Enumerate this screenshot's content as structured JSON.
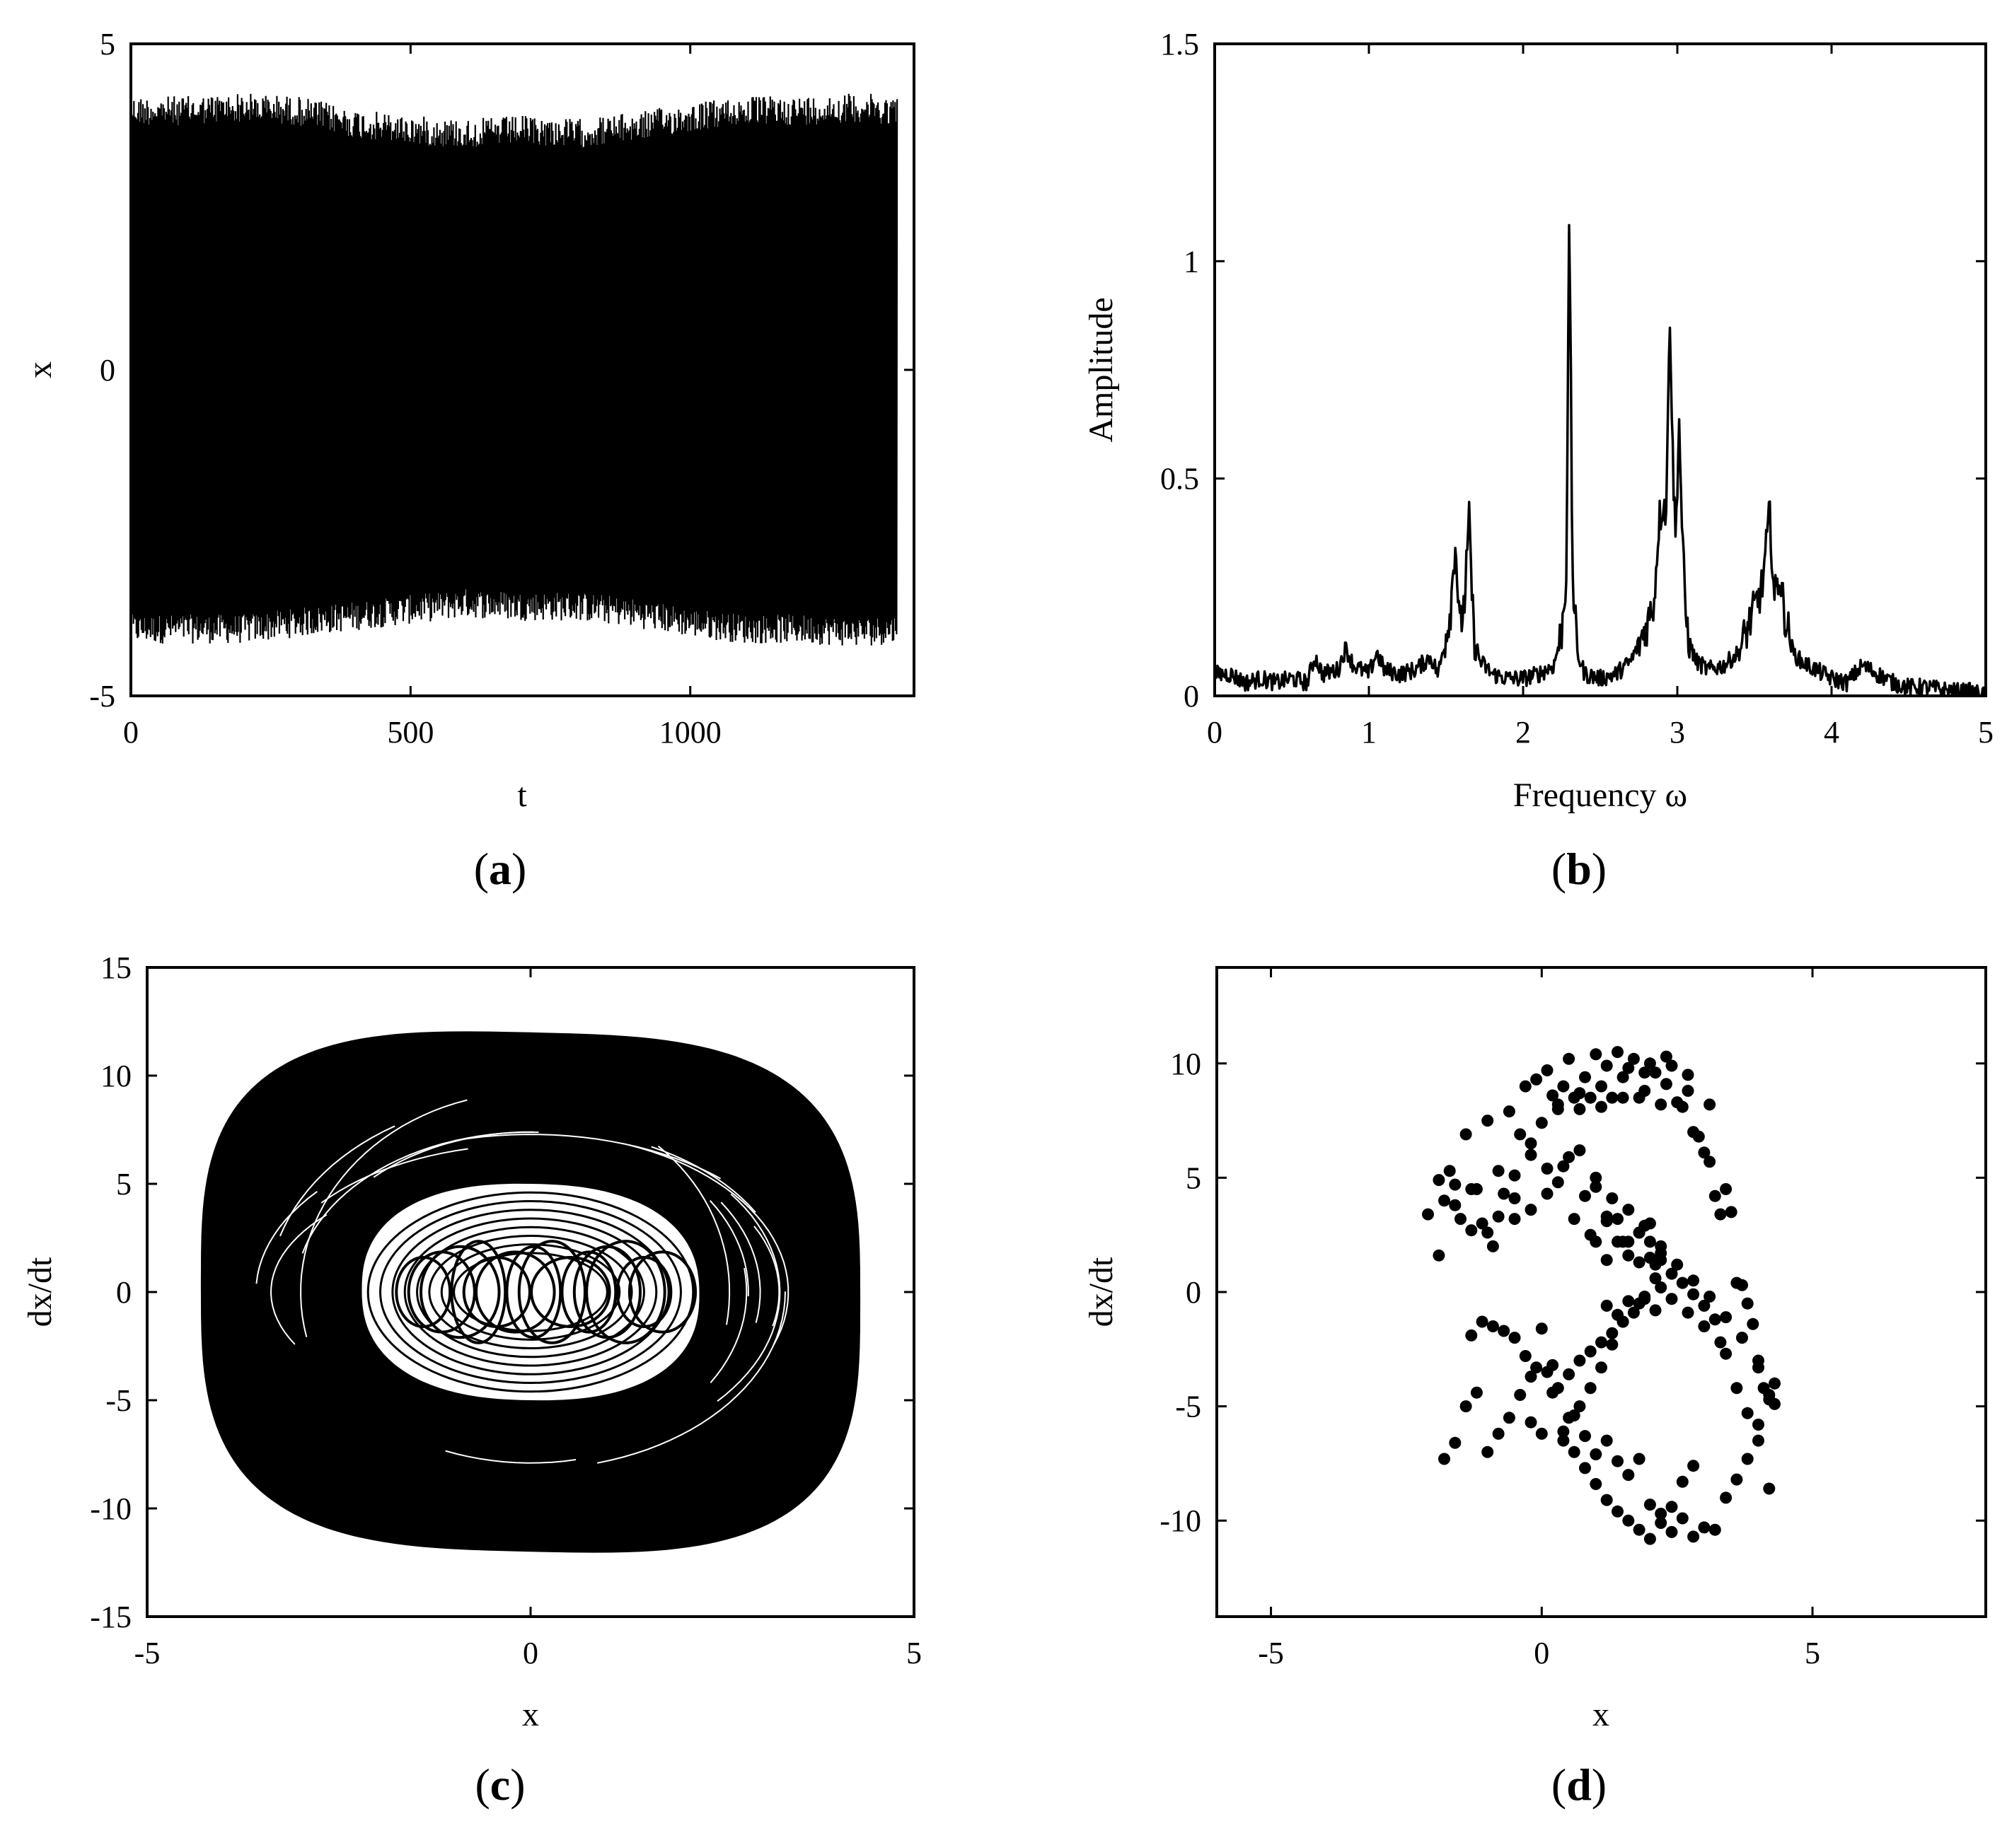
{
  "figure": {
    "panel_labels": [
      {
        "open": "(",
        "letter": "a",
        "close": ")"
      },
      {
        "open": "(",
        "letter": "b",
        "close": ")"
      },
      {
        "open": "(",
        "letter": "c",
        "close": ")"
      },
      {
        "open": "(",
        "letter": "d",
        "close": ")"
      }
    ]
  },
  "chart_data": [
    {
      "id": "a",
      "type": "line",
      "title": "",
      "xlabel": "t",
      "ylabel": "x",
      "xlim": [
        0,
        1400
      ],
      "ylim": [
        -5,
        5
      ],
      "xticks": [
        0,
        500,
        1000
      ],
      "xtick_labels": [
        "0",
        "500",
        "1000"
      ],
      "yticks": [
        -5,
        0,
        5
      ],
      "ytick_labels": [
        "-5",
        "0",
        "5"
      ],
      "grid": false,
      "series": [
        {
          "description_values": "dense chaotic time series x(t)",
          "envelope": {
            "t": [
              0,
              100,
              200,
              300,
              400,
              500,
              600,
              700,
              800,
              900,
              1000,
              1100,
              1200,
              1300,
              1370
            ],
            "max": [
              4.2,
              4.2,
              4.25,
              4.2,
              4.0,
              3.9,
              3.85,
              3.9,
              3.85,
              3.95,
              4.1,
              4.2,
              4.2,
              4.25,
              4.2
            ],
            "min": [
              -4.2,
              -4.2,
              -4.2,
              -4.1,
              -4.0,
              -3.9,
              -3.8,
              -3.85,
              -3.85,
              -3.95,
              -4.1,
              -4.2,
              -4.2,
              -4.25,
              -4.2
            ]
          },
          "t_end": 1370
        }
      ]
    },
    {
      "id": "b",
      "type": "line",
      "title": "",
      "xlabel": "Frequency ω",
      "ylabel": "Amplitude",
      "xlim": [
        0,
        5
      ],
      "ylim": [
        0,
        1.5
      ],
      "xticks": [
        0,
        1,
        2,
        3,
        4,
        5
      ],
      "xtick_labels": [
        "0",
        "1",
        "2",
        "3",
        "4",
        "5"
      ],
      "yticks": [
        0,
        0.5,
        1,
        1.5
      ],
      "ytick_labels": [
        "0",
        "0.5",
        "1",
        "1.5"
      ],
      "grid": false,
      "series": [
        {
          "x": [
            0,
            0.1,
            0.2,
            0.3,
            0.4,
            0.5,
            0.6,
            0.65,
            0.7,
            0.8,
            0.85,
            0.9,
            1.0,
            1.05,
            1.1,
            1.2,
            1.3,
            1.4,
            1.45,
            1.5,
            1.53,
            1.56,
            1.59,
            1.62,
            1.65,
            1.68,
            1.72,
            1.8,
            1.9,
            2.0,
            2.1,
            2.2,
            2.25,
            2.28,
            2.3,
            2.32,
            2.35,
            2.4,
            2.5,
            2.6,
            2.7,
            2.8,
            2.85,
            2.88,
            2.91,
            2.93,
            2.95,
            2.97,
            2.99,
            3.01,
            3.03,
            3.05,
            3.08,
            3.12,
            3.2,
            3.3,
            3.4,
            3.5,
            3.55,
            3.6,
            3.63,
            3.66,
            3.7,
            3.75,
            3.8,
            3.9,
            4.0,
            4.1,
            4.2,
            4.3,
            4.4,
            4.5,
            4.6,
            4.7,
            4.8,
            4.9,
            5.0
          ],
          "y": [
            0.05,
            0.05,
            0.03,
            0.04,
            0.03,
            0.04,
            0.03,
            0.09,
            0.05,
            0.06,
            0.11,
            0.07,
            0.05,
            0.1,
            0.06,
            0.05,
            0.06,
            0.09,
            0.05,
            0.14,
            0.2,
            0.36,
            0.15,
            0.22,
            0.4,
            0.14,
            0.08,
            0.05,
            0.04,
            0.04,
            0.05,
            0.07,
            0.15,
            0.28,
            1.12,
            0.28,
            0.1,
            0.05,
            0.04,
            0.05,
            0.08,
            0.16,
            0.22,
            0.4,
            0.45,
            0.42,
            0.92,
            0.55,
            0.35,
            0.65,
            0.4,
            0.2,
            0.12,
            0.08,
            0.06,
            0.07,
            0.1,
            0.2,
            0.25,
            0.42,
            0.22,
            0.28,
            0.18,
            0.1,
            0.08,
            0.06,
            0.04,
            0.03,
            0.07,
            0.05,
            0.03,
            0.02,
            0.02,
            0.015,
            0.01,
            0.01,
            0.0
          ]
        }
      ]
    },
    {
      "id": "c",
      "type": "line",
      "title": "",
      "xlabel": "x",
      "ylabel": "dx/dt",
      "xlim": [
        -5,
        5
      ],
      "ylim": [
        -15,
        15
      ],
      "xticks": [
        -5,
        0,
        5
      ],
      "xtick_labels": [
        "-5",
        "0",
        "5"
      ],
      "yticks": [
        -15,
        -10,
        -5,
        0,
        5,
        10,
        15
      ],
      "ytick_labels": [
        "-15",
        "-10",
        "-5",
        "0",
        "5",
        "10",
        "15"
      ],
      "grid": false,
      "series": [
        {
          "description_values": "phase portrait trajectory",
          "outer_extent": {
            "x": [
              -4.3,
              4.3
            ],
            "y": [
              -12.0,
              12.0
            ]
          },
          "inner_hole_extent": {
            "x": [
              -2.2,
              2.2
            ],
            "y": [
              -5.0,
              5.0
            ]
          }
        }
      ]
    },
    {
      "id": "d",
      "type": "scatter",
      "title": "",
      "xlabel": "x",
      "ylabel": "dx/dt",
      "xlim": [
        -6,
        8.2
      ],
      "ylim": [
        -14.2,
        14.2
      ],
      "xticks": [
        -5,
        0,
        5
      ],
      "xtick_labels": [
        "-5",
        "0",
        "5"
      ],
      "yticks": [
        -10,
        -5,
        0,
        5,
        10
      ],
      "ytick_labels": [
        "-10",
        "-5",
        "0",
        "5",
        "10"
      ],
      "grid": false,
      "series": [
        {
          "x": [
            -2.1,
            -1.9,
            -1.8,
            -1.7,
            -1.6,
            -1.5,
            -1.4,
            -1.3,
            -1.2,
            -1.1,
            -1.0,
            -0.9,
            -0.8,
            -0.7,
            -0.6,
            -0.5,
            -0.4,
            -0.3,
            -0.2,
            -0.1,
            0.0,
            0.1,
            0.2,
            0.3,
            0.4,
            0.5,
            0.6,
            0.7,
            0.8,
            0.9,
            1.0,
            1.1,
            1.2,
            1.3,
            1.4,
            1.5,
            1.6,
            1.7,
            1.8,
            1.9,
            2.0,
            2.1,
            2.2,
            2.3,
            2.4,
            2.5,
            2.6,
            2.7,
            2.8,
            2.9,
            3.0,
            3.1,
            3.2,
            3.3,
            3.4,
            3.5,
            3.6,
            3.7,
            3.8,
            3.9,
            4.0,
            4.1,
            4.2,
            4.3,
            -1.9,
            -1.6,
            -1.3,
            -1.0,
            -0.8,
            -0.5,
            -0.2,
            0.1,
            0.3,
            0.5,
            0.8,
            1.0,
            1.2,
            1.4,
            1.6,
            1.8,
            2.0,
            2.2,
            2.4,
            2.6,
            2.8,
            3.0,
            3.2,
            3.4,
            3.6,
            3.8,
            4.0,
            4.2,
            1.0,
            1.2,
            1.4,
            1.6,
            1.8,
            2.0,
            2.1,
            2.2,
            1.9,
            1.7,
            1.5,
            1.3,
            1.1,
            0.9,
            0.7,
            0.5,
            0.3,
            0.1,
            -0.1,
            -0.3,
            -0.5,
            -0.7,
            -0.9,
            -1.1,
            -1.3,
            -0.2,
            0.0,
            0.2,
            0.4,
            0.6,
            0.8,
            1.0,
            1.2,
            1.4,
            1.6,
            1.8,
            2.0,
            2.2,
            2.4,
            2.6,
            2.8,
            3.0,
            3.2,
            3.4,
            3.6,
            3.8,
            4.0,
            4.2,
            4.3,
            2.0,
            2.2,
            1.6,
            1.4,
            1.2,
            1.9,
            2.1,
            1.8,
            1.5,
            1.3,
            1.1,
            0.9,
            0.7,
            0.5,
            0.4,
            0.6,
            0.8,
            1.0,
            1.2,
            1.4,
            1.6,
            1.8,
            2.0,
            2.2,
            2.4,
            2.6,
            2.8,
            0.2,
            0.0,
            -0.2,
            -0.4,
            -0.6,
            -0.8,
            -1.0,
            -1.2,
            -1.4,
            -1.6,
            -1.8,
            0.6,
            0.9,
            1.2,
            1.5,
            1.8,
            2.1,
            2.4,
            2.7,
            3.0,
            3.3,
            0.3,
            0.7,
            1.1,
            1.5,
            1.9,
            2.3,
            2.7,
            3.1,
            -0.5,
            -0.2,
            0.1,
            0.4,
            0.7,
            1.0,
            1.3,
            1.6,
            1.9,
            2.2,
            2.5,
            2.8,
            3.1,
            3.4,
            3.7,
            4.0
          ],
          "y": [
            3.4,
            1.6,
            4.0,
            5.3,
            4.7,
            3.2,
            6.9,
            2.7,
            4.5,
            3.0,
            7.5,
            2.0,
            5.3,
            4.3,
            7.9,
            3.2,
            6.9,
            9.0,
            6.5,
            9.3,
            7.4,
            9.7,
            8.6,
            8.2,
            9.0,
            10.2,
            8.5,
            8.0,
            9.4,
            8.5,
            10.4,
            8.1,
            9.9,
            8.5,
            10.5,
            8.5,
            9.8,
            10.2,
            8.5,
            8.8,
            10.0,
            9.6,
            8.2,
            10.3,
            9.9,
            8.3,
            8.1,
            9.5,
            7.0,
            6.8,
            6.1,
            5.7,
            4.2,
            3.4,
            4.5,
            3.5,
            0.4,
            0.3,
            -0.5,
            -1.4,
            -3.3,
            -4.2,
            -4.5,
            -4.9,
            4.9,
            3.8,
            4.5,
            2.6,
            3.3,
            4.1,
            3.6,
            5.4,
            4.8,
            5.9,
            4.2,
            4.6,
            3.3,
            3.2,
            2.2,
            2.6,
            1.5,
            1.7,
            0.8,
            0.4,
            -0.1,
            -0.6,
            -1.2,
            -2.7,
            -4.2,
            -5.3,
            -6.5,
            -8.6,
            2.2,
            1.4,
            2.2,
            1.6,
            2.6,
            2.2,
            1.2,
            0.2,
            -0.3,
            -0.9,
            -1.3,
            -1.8,
            -2.2,
            -2.6,
            -3.0,
            -3.6,
            -4.2,
            -3.5,
            -3.3,
            -2.8,
            -2.0,
            -1.7,
            -1.5,
            -1.3,
            -1.9,
            -5.7,
            -6.2,
            -4.4,
            -6.5,
            -5.4,
            -6.3,
            -7.1,
            -6.5,
            -7.4,
            -8.0,
            -7.3,
            -9.3,
            -9.7,
            -10.5,
            -9.9,
            -10.7,
            -10.3,
            -10.4,
            -9.0,
            -8.2,
            -7.3,
            -5.8,
            -4.7,
            -4.0,
            3.0,
            1.4,
            -0.4,
            -1.0,
            -0.6,
            -0.2,
            -0.8,
            -0.5,
            -1.3,
            -2.3,
            -3.3,
            -4.2,
            -5.0,
            -5.5,
            -6.1,
            -7.0,
            -7.7,
            -8.4,
            -9.1,
            -9.6,
            -10.0,
            -10.4,
            -10.8,
            -10.1,
            -9.4,
            -8.3,
            -7.6,
            -3.2,
            -1.6,
            -3.7,
            -4.5,
            -5.5,
            -6.2,
            -7.0,
            -4.4,
            -5.0,
            -6.6,
            -7.3,
            3.2,
            2.5,
            3.1,
            2.2,
            1.3,
            0.6,
            -0.3,
            -0.9,
            -1.5,
            -2.2,
            8.0,
            8.7,
            9.0,
            9.4,
            9.6,
            9.1,
            8.8,
            8.2,
            5.1,
            6.0,
            4.3,
            5.5,
            6.2,
            5.0,
            4.1,
            3.6,
            2.9,
            2.0,
            1.2,
            0.5,
            -0.2,
            -1.1,
            -2.0,
            -3.0
          ]
        }
      ]
    }
  ]
}
